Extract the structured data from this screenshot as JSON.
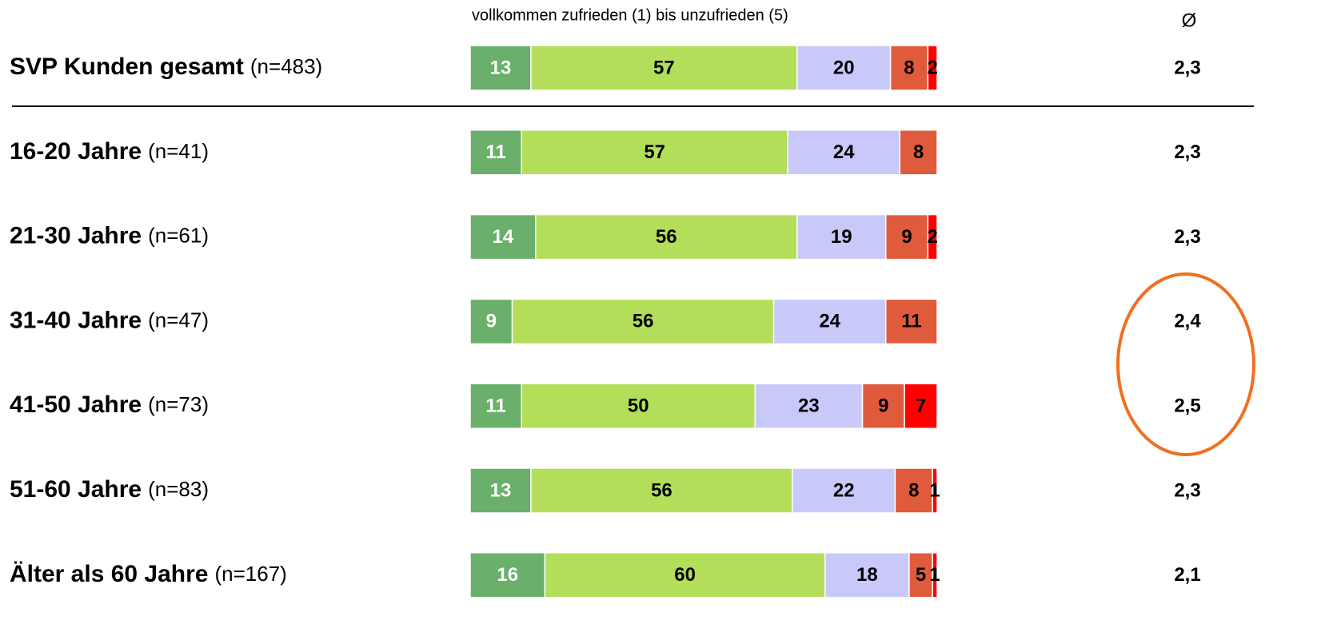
{
  "chart_data": {
    "type": "stacked-bar",
    "subtitle": "vollkommen zufrieden (1) bis unzufrieden (5)",
    "average_heading": "Ø",
    "categories": [
      "SVP Kunden gesamt",
      "16-20 Jahre",
      "21-30 Jahre",
      "31-40 Jahre",
      "41-50 Jahre",
      "51-60 Jahre",
      "Älter als 60 Jahre"
    ],
    "sample_sizes": [
      "(n=483)",
      "(n=41)",
      "(n=61)",
      "(n=47)",
      "(n=73)",
      "(n=83)",
      "(n=167)"
    ],
    "xlim": [
      0,
      100
    ],
    "series": [
      {
        "color": "#6aaf6a",
        "values": [
          13,
          11,
          14,
          9,
          11,
          13,
          16
        ]
      },
      {
        "color": "#b3de5a",
        "values": [
          57,
          57,
          56,
          56,
          50,
          56,
          60
        ]
      },
      {
        "color": "#c9c9f9",
        "values": [
          20,
          24,
          19,
          24,
          23,
          22,
          18
        ]
      },
      {
        "color": "#e05a3c",
        "values": [
          8,
          8,
          9,
          11,
          9,
          8,
          5
        ]
      },
      {
        "color": "#ff0000",
        "values": [
          2,
          null,
          2,
          null,
          7,
          1,
          1
        ]
      }
    ],
    "averages": {
      "values": [
        2.3,
        2.3,
        2.3,
        2.4,
        2.5,
        2.3,
        2.1
      ],
      "value_labels": [
        "2,3",
        "2,3",
        "2,3",
        "2,4",
        "2,5",
        "2,3",
        "2,1"
      ]
    },
    "highlight_color": "#f07020"
  }
}
